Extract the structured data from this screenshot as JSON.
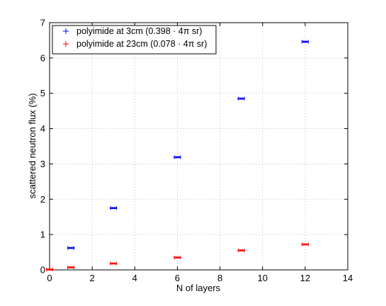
{
  "chart_data": {
    "type": "scatter",
    "title": "",
    "xlabel": "N of layers",
    "ylabel": "scattered neutron flux (%)",
    "xlim": [
      0,
      14
    ],
    "ylim": [
      0,
      7
    ],
    "x_ticks": [
      0,
      2,
      4,
      6,
      8,
      10,
      12,
      14
    ],
    "y_ticks": [
      0,
      1,
      2,
      3,
      4,
      5,
      6,
      7
    ],
    "grid": true,
    "legend_position": "top-left",
    "series": [
      {
        "name": "polyimide at 3cm (0.398 · 4π sr)",
        "color": "#0000ff",
        "marker": "plus",
        "x": [
          1,
          3,
          6,
          9,
          12
        ],
        "y": [
          0.62,
          1.75,
          3.19,
          4.85,
          6.46
        ]
      },
      {
        "name": "polyimide at 23cm (0.078 · 4π sr)",
        "color": "#ff0000",
        "marker": "plus",
        "x": [
          0,
          1,
          3,
          6,
          9,
          12
        ],
        "y": [
          0.01,
          0.07,
          0.18,
          0.35,
          0.55,
          0.72
        ]
      }
    ]
  }
}
